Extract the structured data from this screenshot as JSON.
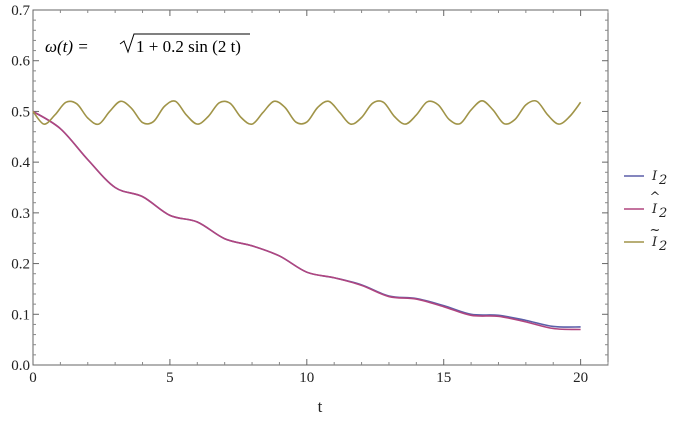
{
  "chart_data": {
    "type": "line",
    "title": "",
    "xlabel": "t",
    "ylabel": "",
    "xlim": [
      0,
      21
    ],
    "ylim": [
      0,
      0.7
    ],
    "x_ticks": [
      0,
      5,
      10,
      15,
      20
    ],
    "x_tick_labels": [
      "0",
      "5",
      "10",
      "15",
      "20"
    ],
    "y_ticks": [
      0,
      0.1,
      0.2,
      0.3,
      0.4,
      0.5,
      0.6,
      0.7
    ],
    "y_tick_labels": [
      "0.0",
      "0.1",
      "0.2",
      "0.3",
      "0.4",
      "0.5",
      "0.6",
      "0.7"
    ],
    "grid": false,
    "legend_position": "right",
    "annotation": {
      "lhs": "ω(t) = ",
      "radicand": "1 + 0.2 sin (2 t)"
    },
    "series": [
      {
        "name": "I₂",
        "legend_label": "I",
        "legend_mark": "",
        "color": "#5b5fa8",
        "x": [
          0,
          1,
          2,
          3,
          4,
          5,
          6,
          7,
          8,
          9,
          10,
          11,
          12,
          13,
          14,
          15,
          16,
          17,
          18,
          19,
          20
        ],
        "y": [
          0.5,
          0.466,
          0.405,
          0.35,
          0.332,
          0.295,
          0.282,
          0.249,
          0.235,
          0.215,
          0.183,
          0.172,
          0.158,
          0.136,
          0.131,
          0.117,
          0.1,
          0.098,
          0.088,
          0.076,
          0.075
        ]
      },
      {
        "name": "Î₂",
        "legend_label": "I",
        "legend_mark": "^",
        "color": "#b0457f",
        "x": [
          0,
          1,
          2,
          3,
          4,
          5,
          6,
          7,
          8,
          9,
          10,
          11,
          12,
          13,
          14,
          15,
          16,
          17,
          18,
          19,
          20
        ],
        "y": [
          0.5,
          0.466,
          0.405,
          0.35,
          0.332,
          0.295,
          0.282,
          0.249,
          0.235,
          0.215,
          0.183,
          0.172,
          0.157,
          0.135,
          0.13,
          0.115,
          0.098,
          0.096,
          0.085,
          0.072,
          0.07
        ]
      },
      {
        "name": "Ĩ₂",
        "legend_label": "I",
        "legend_mark": "~",
        "color": "#a09448",
        "x": [
          0,
          0.4,
          0.8,
          1.2,
          1.6,
          2.0,
          2.4,
          2.8,
          3.2,
          3.6,
          4.0,
          4.4,
          4.8,
          5.2,
          5.6,
          6.0,
          6.4,
          6.8,
          7.2,
          7.6,
          8.0,
          8.4,
          8.8,
          9.2,
          9.6,
          10.0,
          10.4,
          10.8,
          11.2,
          11.6,
          12.0,
          12.4,
          12.8,
          13.2,
          13.6,
          14.0,
          14.4,
          14.8,
          15.2,
          15.6,
          16.0,
          16.4,
          16.8,
          17.2,
          17.6,
          18.0,
          18.4,
          18.8,
          19.2,
          19.6,
          20.0
        ],
        "y": [
          0.5,
          0.475,
          0.493,
          0.518,
          0.515,
          0.487,
          0.475,
          0.5,
          0.52,
          0.506,
          0.478,
          0.48,
          0.51,
          0.52,
          0.493,
          0.475,
          0.49,
          0.517,
          0.516,
          0.488,
          0.475,
          0.498,
          0.52,
          0.508,
          0.479,
          0.479,
          0.508,
          0.52,
          0.498,
          0.475,
          0.488,
          0.516,
          0.518,
          0.49,
          0.475,
          0.493,
          0.519,
          0.513,
          0.484,
          0.476,
          0.503,
          0.521,
          0.503,
          0.476,
          0.484,
          0.513,
          0.52,
          0.493,
          0.475,
          0.49,
          0.518
        ]
      }
    ]
  }
}
